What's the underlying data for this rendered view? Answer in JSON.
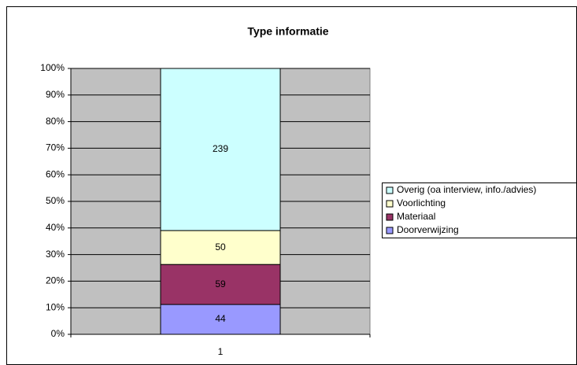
{
  "chart_data": {
    "type": "bar",
    "stacking": "percent",
    "title": "Type informatie",
    "categories": [
      "1"
    ],
    "series": [
      {
        "name": "Doorverwijzing",
        "color": "#9999ff",
        "values": [
          44
        ]
      },
      {
        "name": "Materiaal",
        "color": "#993366",
        "values": [
          59
        ]
      },
      {
        "name": "Voorlichting",
        "color": "#ffffcc",
        "values": [
          50
        ]
      },
      {
        "name": "Overig (oa interview, info./advies)",
        "color": "#ccffff",
        "values": [
          239
        ]
      }
    ],
    "ylim": [
      0,
      100
    ],
    "yticks": [
      {
        "value": 0,
        "label": "0%"
      },
      {
        "value": 10,
        "label": "10%"
      },
      {
        "value": 20,
        "label": "20%"
      },
      {
        "value": 30,
        "label": "30%"
      },
      {
        "value": 40,
        "label": "40%"
      },
      {
        "value": 50,
        "label": "50%"
      },
      {
        "value": 60,
        "label": "60%"
      },
      {
        "value": 70,
        "label": "70%"
      },
      {
        "value": 80,
        "label": "80%"
      },
      {
        "value": 90,
        "label": "90%"
      },
      {
        "value": 100,
        "label": "100%"
      }
    ],
    "grid": true,
    "legend": "right",
    "plot_background": "#c0c0c0"
  }
}
